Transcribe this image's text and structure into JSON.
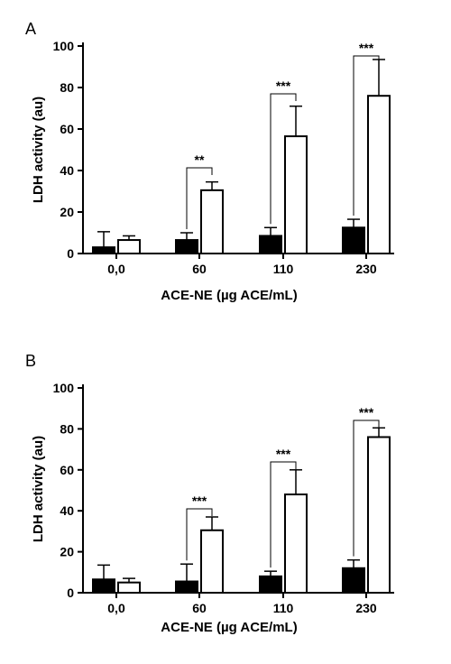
{
  "chart_data": [
    {
      "panel_label": "A",
      "type": "bar",
      "categories": [
        "0,0",
        "60",
        "110",
        "230"
      ],
      "series": [
        {
          "values": [
            3,
            6.5,
            8.5,
            12.5
          ],
          "errors": [
            7.5,
            3.5,
            4,
            4
          ],
          "color": "#000000"
        },
        {
          "values": [
            6.5,
            30.5,
            56.5,
            76
          ],
          "errors": [
            2,
            4,
            14.5,
            17.5
          ],
          "color": "#ffffff"
        }
      ],
      "significance": [
        {
          "category": "60",
          "label": "**"
        },
        {
          "category": "110",
          "label": "***"
        },
        {
          "category": "230",
          "label": "***"
        }
      ],
      "xlabel": "ACE-NE (µg ACE/mL)",
      "ylabel": "LDH activity (au)",
      "ylim": [
        0,
        100
      ],
      "yticks": [
        "0",
        "20",
        "40",
        "60",
        "80",
        "100"
      ]
    },
    {
      "panel_label": "B",
      "type": "bar",
      "categories": [
        "0,0",
        "60",
        "110",
        "230"
      ],
      "series": [
        {
          "values": [
            6.5,
            5.5,
            8,
            12
          ],
          "errors": [
            7,
            8.5,
            2.5,
            4
          ],
          "color": "#000000"
        },
        {
          "values": [
            5,
            30.5,
            48,
            76
          ],
          "errors": [
            2,
            6.5,
            12,
            4.5
          ],
          "color": "#ffffff"
        }
      ],
      "significance": [
        {
          "category": "60",
          "label": "***"
        },
        {
          "category": "110",
          "label": "***"
        },
        {
          "category": "230",
          "label": "***"
        }
      ],
      "xlabel": "ACE-NE (µg ACE/mL)",
      "ylabel": "LDH activity (au)",
      "ylim": [
        0,
        100
      ],
      "yticks": [
        "0",
        "20",
        "40",
        "60",
        "80",
        "100"
      ]
    }
  ]
}
